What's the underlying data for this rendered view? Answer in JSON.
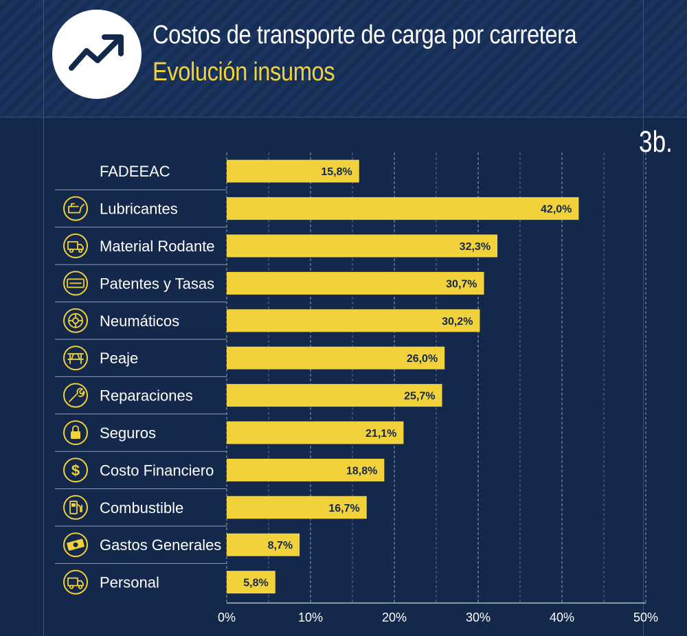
{
  "header": {
    "title": "Costos de transporte de carga por carretera",
    "subtitle": "Evolución insumos",
    "badge": "3b.",
    "icon": "trending-up-icon"
  },
  "colors": {
    "background": "#13284a",
    "bar": "#f2d23a",
    "accent": "#f2d23a",
    "text": "#ffffff"
  },
  "chart_data": {
    "type": "bar",
    "orientation": "horizontal",
    "categories": [
      "FADEEAC",
      "Lubricantes",
      "Material Rodante",
      "Patentes y Tasas",
      "Neumáticos",
      "Peaje",
      "Reparaciones",
      "Seguros",
      "Costo Financiero",
      "Combustible",
      "Gastos Generales",
      "Personal"
    ],
    "values": [
      15.8,
      42.0,
      32.3,
      30.7,
      30.2,
      26.0,
      25.7,
      21.1,
      18.8,
      16.7,
      8.7,
      5.8
    ],
    "value_labels": [
      "15,8%",
      "42,0%",
      "32,3%",
      "30,7%",
      "30,2%",
      "26,0%",
      "25,7%",
      "21,1%",
      "18,8%",
      "16,7%",
      "8,7%",
      "5,8%"
    ],
    "icons": [
      "",
      "oil-can-icon",
      "truck-icon",
      "license-plate-icon",
      "tire-icon",
      "toll-booth-icon",
      "wrench-icon",
      "padlock-icon",
      "dollar-icon",
      "fuel-pump-icon",
      "banknote-icon",
      "truck-icon"
    ],
    "xlim": [
      0,
      50
    ],
    "x_ticks": [
      0,
      10,
      20,
      30,
      40,
      50
    ],
    "x_tick_labels": [
      "0%",
      "10%",
      "20%",
      "30%",
      "40%",
      "50%"
    ],
    "grid": "vertical dashed",
    "legend": "none"
  }
}
